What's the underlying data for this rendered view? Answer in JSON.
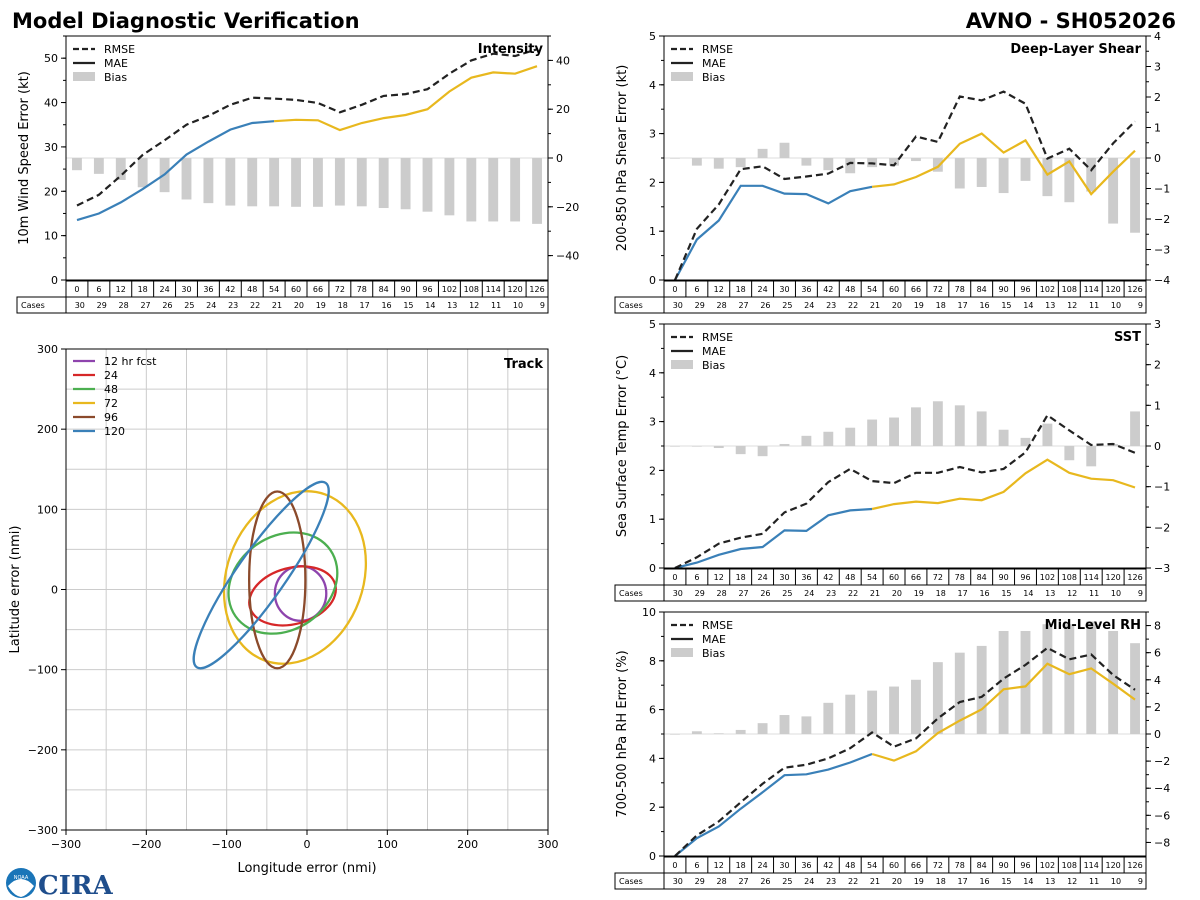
{
  "header": {
    "title": "Model Diagnostic Verification",
    "storm_id": "AVNO - SH052026"
  },
  "logo": {
    "text": "CIRA",
    "noaa": "NOAA"
  },
  "cases_label": "Cases",
  "colors": {
    "rmse": "#222222",
    "mae_early": "#3a80b8",
    "mae_late": "#e8b81e",
    "bias": "#cccccc",
    "grid": "#cccccc"
  },
  "legend_labels": {
    "rmse": "RMSE",
    "mae": "MAE",
    "bias": "Bias"
  },
  "chart_data": [
    {
      "id": "intensity",
      "type": "line+bar",
      "title": "Intensity",
      "ylabel": "10m Wind Speed Error (kt)",
      "ylim": [
        0,
        55
      ],
      "yticks": [
        0,
        10,
        20,
        30,
        40,
        50
      ],
      "y2lim": [
        -50,
        50
      ],
      "y2ticks": [
        -40,
        -20,
        0,
        20,
        40
      ],
      "x": [
        0,
        6,
        12,
        18,
        24,
        30,
        36,
        42,
        48,
        54,
        60,
        66,
        72,
        78,
        84,
        90,
        96,
        102,
        108,
        114,
        120,
        126
      ],
      "rmse": [
        16.8,
        19.2,
        23.5,
        28.2,
        31.5,
        35.0,
        37.0,
        39.5,
        41.1,
        40.9,
        40.6,
        39.9,
        37.8,
        39.5,
        41.5,
        41.9,
        43.0,
        46.5,
        49.5,
        51.0,
        50.5,
        52.0
      ],
      "mae": [
        13.5,
        15.0,
        17.5,
        20.5,
        23.8,
        28.3,
        31.2,
        33.9,
        35.4,
        35.8,
        36.1,
        36.0,
        33.8,
        35.4,
        36.5,
        37.2,
        38.5,
        42.5,
        45.6,
        46.8,
        46.5,
        48.2
      ],
      "bias": [
        -5.0,
        -6.5,
        -9.0,
        -12.0,
        -14.0,
        -17.0,
        -18.5,
        -19.5,
        -19.8,
        -19.8,
        -20.0,
        -20.0,
        -19.5,
        -19.8,
        -20.5,
        -21.0,
        -22.0,
        -23.5,
        -26.0,
        -26.0,
        -26.0,
        -27.0
      ],
      "cases": [
        30,
        29,
        28,
        27,
        26,
        25,
        24,
        23,
        22,
        21,
        20,
        19,
        18,
        17,
        16,
        15,
        14,
        13,
        12,
        11,
        10,
        9
      ]
    },
    {
      "id": "shear",
      "type": "line+bar",
      "title": "Deep-Layer Shear",
      "ylabel": "200-850 hPa Shear Error (kt)",
      "ylim": [
        0,
        5
      ],
      "yticks": [
        0,
        1,
        2,
        3,
        4,
        5
      ],
      "y2lim": [
        -4,
        4
      ],
      "y2ticks": [
        -4,
        -3,
        -2,
        -1,
        0,
        1,
        2,
        3,
        4
      ],
      "x": [
        0,
        6,
        12,
        18,
        24,
        30,
        36,
        42,
        48,
        54,
        60,
        66,
        72,
        78,
        84,
        90,
        96,
        102,
        108,
        114,
        120,
        126
      ],
      "rmse": [
        0.0,
        1.05,
        1.55,
        2.27,
        2.33,
        2.07,
        2.12,
        2.18,
        2.4,
        2.39,
        2.35,
        2.94,
        2.83,
        3.76,
        3.68,
        3.86,
        3.61,
        2.49,
        2.69,
        2.25,
        2.8,
        3.25
      ],
      "mae": [
        0.0,
        0.83,
        1.22,
        1.93,
        1.93,
        1.77,
        1.76,
        1.57,
        1.82,
        1.91,
        1.96,
        2.11,
        2.32,
        2.79,
        3.0,
        2.61,
        2.86,
        2.16,
        2.43,
        1.76,
        2.22,
        2.65
      ],
      "bias": [
        0.0,
        -0.25,
        -0.35,
        -0.3,
        0.3,
        0.5,
        -0.25,
        -0.4,
        -0.5,
        -0.3,
        -0.25,
        -0.1,
        -0.45,
        -1.0,
        -0.95,
        -1.15,
        -0.75,
        -1.25,
        -1.45,
        -1.1,
        -2.15,
        -2.45
      ],
      "cases": [
        30,
        29,
        28,
        27,
        26,
        25,
        24,
        23,
        22,
        21,
        20,
        19,
        18,
        17,
        16,
        15,
        14,
        13,
        12,
        11,
        10,
        9
      ]
    },
    {
      "id": "sst",
      "type": "line+bar",
      "title": "SST",
      "ylabel": "Sea Surface Temp Error (°C)",
      "ylim": [
        0,
        5
      ],
      "yticks": [
        0,
        1,
        2,
        3,
        4,
        5
      ],
      "y2lim": [
        -3,
        3
      ],
      "y2ticks": [
        -3,
        -2,
        -1,
        0,
        1,
        2,
        3
      ],
      "x": [
        0,
        6,
        12,
        18,
        24,
        30,
        36,
        42,
        48,
        54,
        60,
        66,
        72,
        78,
        84,
        90,
        96,
        102,
        108,
        114,
        120,
        126
      ],
      "rmse": [
        0.0,
        0.22,
        0.5,
        0.62,
        0.7,
        1.14,
        1.32,
        1.76,
        2.03,
        1.78,
        1.74,
        1.95,
        1.95,
        2.07,
        1.96,
        2.03,
        2.37,
        3.13,
        2.82,
        2.52,
        2.54,
        2.36
      ],
      "mae": [
        0.0,
        0.11,
        0.27,
        0.39,
        0.43,
        0.77,
        0.76,
        1.08,
        1.18,
        1.21,
        1.31,
        1.36,
        1.33,
        1.42,
        1.39,
        1.56,
        1.94,
        2.22,
        1.95,
        1.83,
        1.8,
        1.65
      ],
      "bias": [
        0.0,
        0.0,
        -0.05,
        -0.2,
        -0.25,
        0.05,
        0.25,
        0.35,
        0.45,
        0.65,
        0.7,
        0.95,
        1.1,
        1.0,
        0.85,
        0.4,
        0.2,
        0.55,
        -0.35,
        -0.5,
        0.05,
        0.85
      ],
      "cases": [
        30,
        29,
        28,
        27,
        26,
        25,
        24,
        23,
        22,
        21,
        20,
        19,
        18,
        17,
        16,
        15,
        14,
        13,
        12,
        11,
        10,
        9
      ]
    },
    {
      "id": "rh",
      "type": "line+bar",
      "title": "Mid-Level RH",
      "ylabel": "700-500 hPa RH Error (%)",
      "ylim": [
        0,
        10
      ],
      "yticks": [
        0,
        2,
        4,
        6,
        8,
        10
      ],
      "y2lim": [
        -9,
        9
      ],
      "y2ticks": [
        -8,
        -6,
        -4,
        -2,
        0,
        2,
        4,
        6,
        8
      ],
      "x": [
        0,
        6,
        12,
        18,
        24,
        30,
        36,
        42,
        48,
        54,
        60,
        66,
        72,
        78,
        84,
        90,
        96,
        102,
        108,
        114,
        120,
        126
      ],
      "rmse": [
        0.0,
        0.85,
        1.42,
        2.2,
        2.96,
        3.62,
        3.74,
        4.0,
        4.42,
        5.06,
        4.48,
        4.82,
        5.64,
        6.31,
        6.52,
        7.27,
        7.83,
        8.53,
        8.06,
        8.26,
        7.42,
        6.81
      ],
      "mae": [
        0.0,
        0.73,
        1.21,
        1.94,
        2.61,
        3.31,
        3.35,
        3.54,
        3.83,
        4.18,
        3.91,
        4.29,
        5.04,
        5.55,
        6.01,
        6.83,
        6.95,
        7.88,
        7.45,
        7.69,
        7.06,
        6.41
      ],
      "bias": [
        0.0,
        0.2,
        0.05,
        0.3,
        0.8,
        1.4,
        1.3,
        2.3,
        2.9,
        3.2,
        3.5,
        4.0,
        5.3,
        6.0,
        6.5,
        7.6,
        7.6,
        8.1,
        8.1,
        8.3,
        7.6,
        6.7
      ],
      "cases": [
        30,
        29,
        28,
        27,
        26,
        25,
        24,
        23,
        22,
        21,
        20,
        19,
        18,
        17,
        16,
        15,
        14,
        13,
        12,
        11,
        10,
        9
      ]
    },
    {
      "id": "track",
      "type": "ellipse",
      "title": "Track",
      "xlabel": "Longitude error (nmi)",
      "ylabel": "Latitude error (nmi)",
      "xlim": [
        -300,
        300
      ],
      "ylim": [
        -300,
        300
      ],
      "ticks": [
        -300,
        -200,
        -100,
        0,
        100,
        200,
        300
      ],
      "legend": [
        "12 hr fcst",
        "24",
        "48",
        "72",
        "96",
        "120"
      ],
      "ellipses": [
        {
          "label": "12 hr fcst",
          "color": "#8e44ad",
          "cx": -8,
          "cy": -5,
          "rx": 32,
          "ry": 34,
          "rot": 0
        },
        {
          "label": "24",
          "color": "#d62728",
          "cx": -18,
          "cy": -8,
          "rx": 55,
          "ry": 35,
          "rot": -15
        },
        {
          "label": "48",
          "color": "#4caf50",
          "cx": -30,
          "cy": 8,
          "rx": 72,
          "ry": 58,
          "rot": -35
        },
        {
          "label": "72",
          "color": "#e8b81e",
          "cx": -15,
          "cy": 15,
          "rx": 110,
          "ry": 85,
          "rot": -70
        },
        {
          "label": "96",
          "color": "#8b4a2b",
          "cx": -37,
          "cy": 12,
          "rx": 110,
          "ry": 35,
          "rot": -90
        },
        {
          "label": "120",
          "color": "#3a80b8",
          "cx": -57,
          "cy": 18,
          "rx": 140,
          "ry": 30,
          "rot": -55
        }
      ]
    }
  ]
}
